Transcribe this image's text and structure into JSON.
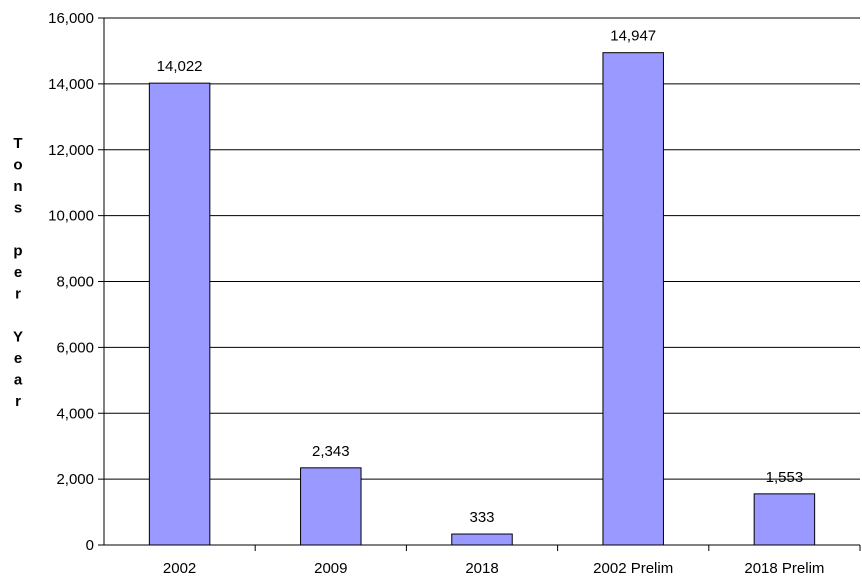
{
  "chart_data": {
    "type": "bar",
    "title": "",
    "xlabel": "",
    "ylabel": "Tons per Year",
    "categories": [
      "2002",
      "2009",
      "2018",
      "2002 Prelim",
      "2018 Prelim"
    ],
    "values": [
      14022,
      2343,
      333,
      14947,
      1553
    ],
    "data_labels": [
      "14,022",
      "2,343",
      "333",
      "14,947",
      "1,553"
    ],
    "ylim": [
      0,
      16000
    ],
    "yticks": [
      0,
      2000,
      4000,
      6000,
      8000,
      10000,
      12000,
      14000,
      16000
    ],
    "ytick_labels": [
      "0",
      "2,000",
      "4,000",
      "6,000",
      "8,000",
      "10,000",
      "12,000",
      "14,000",
      "16,000"
    ],
    "grid": true,
    "legend": "none",
    "bar_color": "#9999ff"
  }
}
